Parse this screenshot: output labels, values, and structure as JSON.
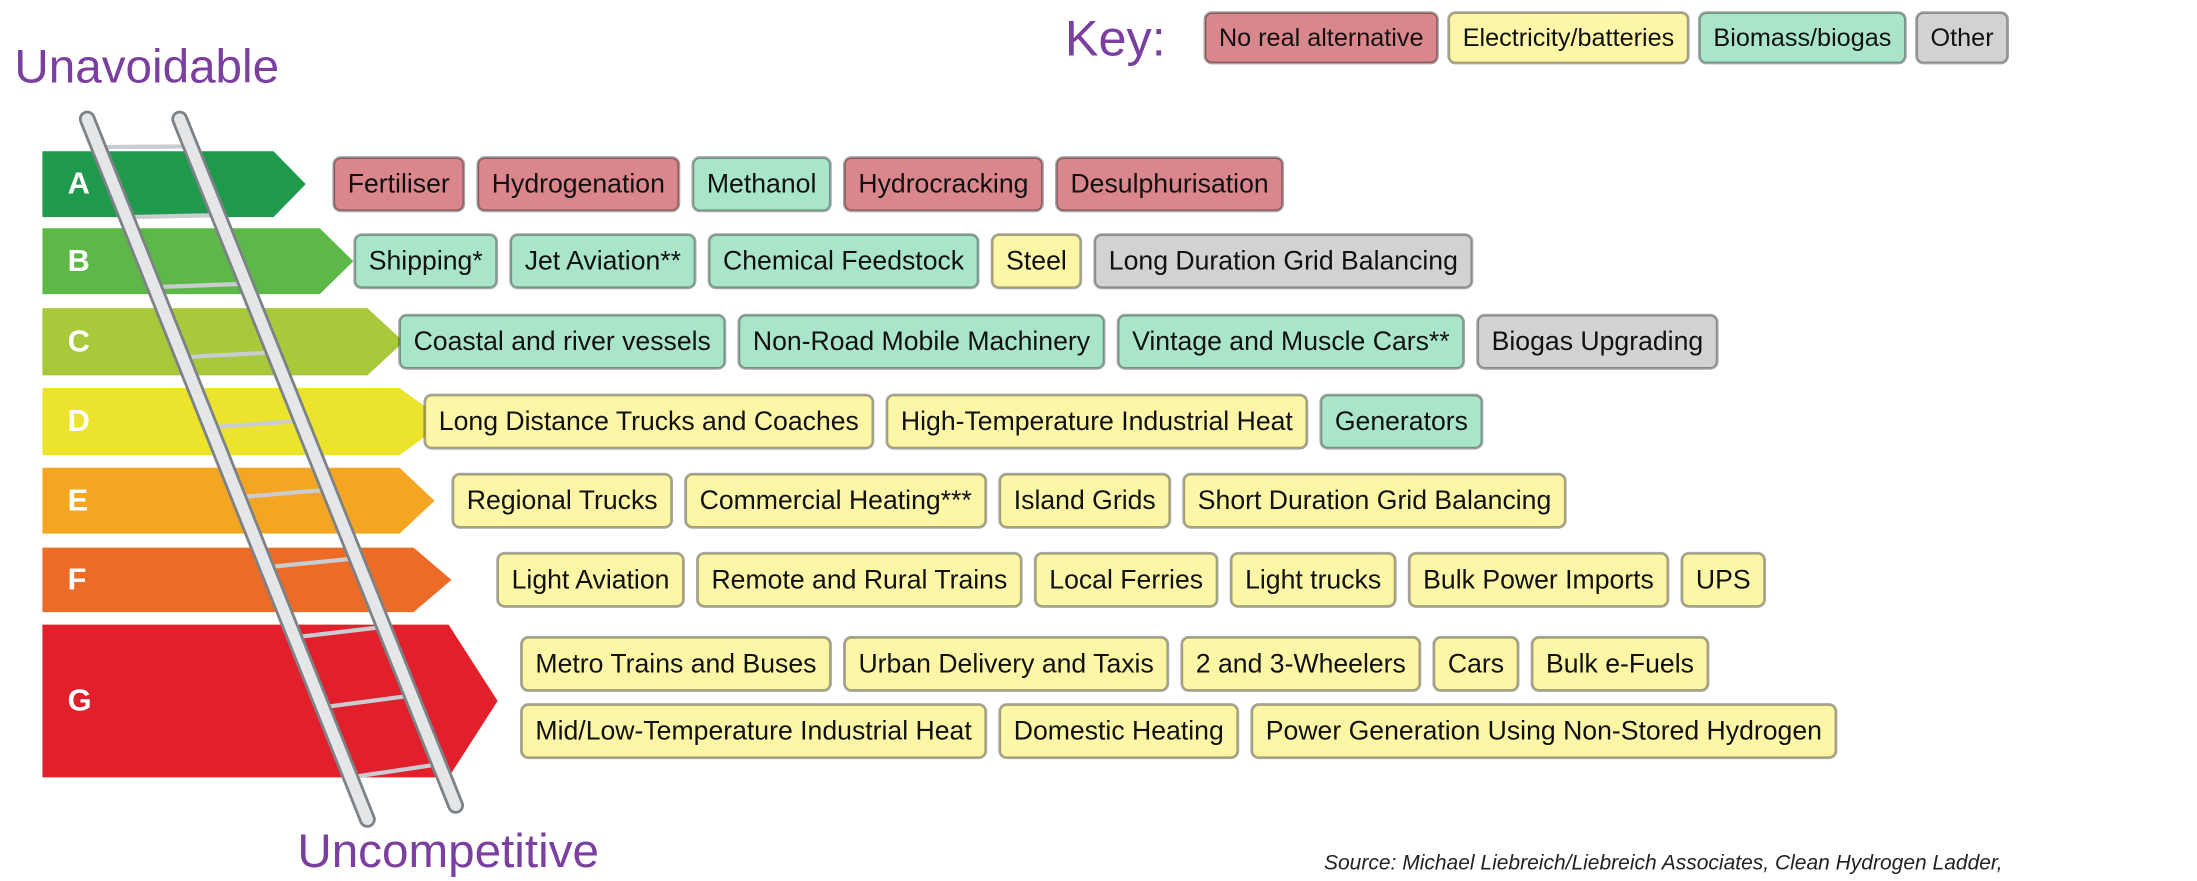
{
  "key": {
    "title": "Key:",
    "items": [
      {
        "label": "No real alternative",
        "color": "#d9878c"
      },
      {
        "label": "Electricity/batteries",
        "color": "#fcf6a6"
      },
      {
        "label": "Biomass/biogas",
        "color": "#a9e5c9"
      },
      {
        "label": "Other",
        "color": "#d2d2d2"
      }
    ]
  },
  "top_label": "Unavoidable",
  "bottom_label": "Uncompetitive",
  "rows": [
    {
      "letter": "A",
      "color": "#1f9a4c",
      "lines": [
        [
          {
            "label": "Fertiliser",
            "color": "#d9878c"
          },
          {
            "label": "Hydrogenation",
            "color": "#d9878c"
          },
          {
            "label": "Methanol",
            "color": "#a9e5c9"
          },
          {
            "label": "Hydrocracking",
            "color": "#d9878c"
          },
          {
            "label": "Desulphurisation",
            "color": "#d9878c"
          }
        ]
      ]
    },
    {
      "letter": "B",
      "color": "#5db847",
      "lines": [
        [
          {
            "label": "Shipping*",
            "color": "#a9e5c9"
          },
          {
            "label": "Jet Aviation**",
            "color": "#a9e5c9"
          },
          {
            "label": "Chemical Feedstock",
            "color": "#a9e5c9"
          },
          {
            "label": "Steel",
            "color": "#fcf6a6"
          },
          {
            "label": "Long Duration Grid Balancing",
            "color": "#d2d2d2"
          }
        ]
      ]
    },
    {
      "letter": "C",
      "color": "#a8c93a",
      "lines": [
        [
          {
            "label": "Coastal and river vessels",
            "color": "#a9e5c9"
          },
          {
            "label": "Non-Road Mobile Machinery",
            "color": "#a9e5c9"
          },
          {
            "label": "Vintage and Muscle Cars**",
            "color": "#a9e5c9"
          },
          {
            "label": "Biogas Upgrading",
            "color": "#d2d2d2"
          }
        ]
      ]
    },
    {
      "letter": "D",
      "color": "#ece42c",
      "lines": [
        [
          {
            "label": "Long Distance Trucks and Coaches",
            "color": "#fcf6a6"
          },
          {
            "label": "High-Temperature Industrial Heat",
            "color": "#fcf6a6"
          },
          {
            "label": "Generators",
            "color": "#a9e5c9"
          }
        ]
      ]
    },
    {
      "letter": "E",
      "color": "#f4a623",
      "lines": [
        [
          {
            "label": "Regional Trucks",
            "color": "#fcf6a6"
          },
          {
            "label": "Commercial Heating***",
            "color": "#fcf6a6"
          },
          {
            "label": "Island Grids",
            "color": "#fcf6a6"
          },
          {
            "label": "Short Duration Grid Balancing",
            "color": "#fcf6a6"
          }
        ]
      ]
    },
    {
      "letter": "F",
      "color": "#ec6b26",
      "lines": [
        [
          {
            "label": "Light Aviation",
            "color": "#fcf6a6"
          },
          {
            "label": "Remote and Rural Trains",
            "color": "#fcf6a6"
          },
          {
            "label": "Local Ferries",
            "color": "#fcf6a6"
          },
          {
            "label": "Light trucks",
            "color": "#fcf6a6"
          },
          {
            "label": "Bulk Power Imports",
            "color": "#fcf6a6"
          },
          {
            "label": "UPS",
            "color": "#fcf6a6"
          }
        ]
      ]
    },
    {
      "letter": "G",
      "color": "#e2202b",
      "lines": [
        [
          {
            "label": "Metro Trains and Buses",
            "color": "#fcf6a6"
          },
          {
            "label": "Urban Delivery and Taxis",
            "color": "#fcf6a6"
          },
          {
            "label": "2 and 3-Wheelers",
            "color": "#fcf6a6"
          },
          {
            "label": "Cars",
            "color": "#fcf6a6"
          },
          {
            "label": "Bulk e-Fuels",
            "color": "#fcf6a6"
          }
        ],
        [
          {
            "label": "Mid/Low-Temperature Industrial Heat",
            "color": "#fcf6a6"
          },
          {
            "label": "Domestic Heating",
            "color": "#fcf6a6"
          },
          {
            "label": "Power Generation Using Non-Stored Hydrogen",
            "color": "#fcf6a6"
          }
        ]
      ]
    }
  ],
  "source": "Source: Michael Liebreich/Liebreich Associates, Clean Hydrogen Ladder,"
}
